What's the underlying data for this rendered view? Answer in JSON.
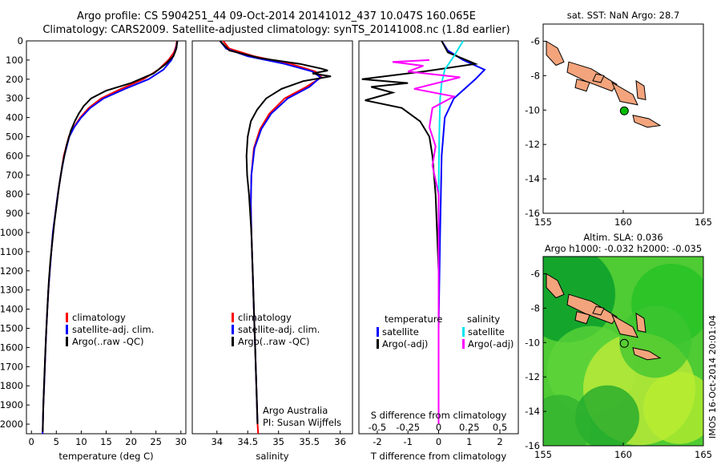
{
  "header": {
    "line1": "Argo profile: CS 5904251_44 09-Oct-2014 20141012_437 10.047S 160.065E",
    "line2": "Climatology: CARS2009. Satellite-adjusted climatology: synTS_20141008.nc (1.8d earlier)"
  },
  "side_stamp": "IMOS 16-Oct-2014 20:01:04",
  "credits": {
    "line1": "Argo Australia",
    "line2": "PI: Susan Wijffels"
  },
  "colors": {
    "climatology": "#ff0000",
    "satellite": "#0000ff",
    "argo": "#000000",
    "sat_diff_t": "#00e5ee",
    "argo_diff_s": "#ff00ff",
    "land": "#f4a47c",
    "marker": "#00bb00"
  },
  "chart_data": [
    {
      "type": "line",
      "xlabel": "temperature (deg C)",
      "ylim": [
        2050,
        0
      ],
      "xlim": [
        -1,
        31
      ],
      "x_ticks": [
        0,
        5,
        10,
        15,
        20,
        25,
        30
      ],
      "y_ticks": [
        0,
        100,
        200,
        300,
        400,
        500,
        600,
        700,
        800,
        900,
        1000,
        1100,
        1200,
        1300,
        1400,
        1500,
        1600,
        1700,
        1800,
        1900,
        2000
      ],
      "legend": [
        "climatology",
        "satellite-adj. clim.",
        "Argo(..raw -QC)"
      ],
      "series": [
        {
          "name": "climatology",
          "color": "#ff0000",
          "points": [
            [
              29.2,
              0
            ],
            [
              29,
              30
            ],
            [
              28.6,
              60
            ],
            [
              27.5,
              100
            ],
            [
              25.5,
              150
            ],
            [
              22.5,
              200
            ],
            [
              18,
              250
            ],
            [
              14,
              300
            ],
            [
              11.5,
              350
            ],
            [
              9.8,
              400
            ],
            [
              8.5,
              450
            ],
            [
              7.5,
              500
            ],
            [
              6.5,
              600
            ],
            [
              5.9,
              700
            ],
            [
              5.3,
              800
            ],
            [
              4.8,
              900
            ],
            [
              4.3,
              1000
            ],
            [
              4,
              1100
            ],
            [
              3.7,
              1200
            ],
            [
              3.4,
              1300
            ],
            [
              3.2,
              1400
            ],
            [
              3,
              1500
            ],
            [
              2.85,
              1600
            ],
            [
              2.7,
              1700
            ],
            [
              2.55,
              1800
            ],
            [
              2.4,
              1900
            ],
            [
              2.3,
              2000
            ],
            [
              2.25,
              2050
            ]
          ]
        },
        {
          "name": "satellite-adj. clim.",
          "color": "#0000ff",
          "points": [
            [
              29.3,
              0
            ],
            [
              29.1,
              30
            ],
            [
              28.8,
              60
            ],
            [
              28.1,
              100
            ],
            [
              26.5,
              150
            ],
            [
              23.5,
              200
            ],
            [
              18.8,
              250
            ],
            [
              14.5,
              300
            ],
            [
              11.8,
              350
            ],
            [
              10,
              400
            ],
            [
              8.6,
              450
            ],
            [
              7.6,
              500
            ],
            [
              6.6,
              600
            ],
            [
              5.9,
              700
            ],
            [
              5.3,
              800
            ],
            [
              4.8,
              900
            ],
            [
              4.3,
              1000
            ],
            [
              4,
              1100
            ],
            [
              3.7,
              1200
            ],
            [
              3.4,
              1300
            ],
            [
              3.2,
              1400
            ],
            [
              3,
              1500
            ],
            [
              2.85,
              1600
            ],
            [
              2.7,
              1700
            ],
            [
              2.55,
              1800
            ],
            [
              2.4,
              1900
            ],
            [
              2.3,
              2000
            ],
            [
              2.25,
              2050
            ]
          ]
        },
        {
          "name": "Argo(..raw -QC)",
          "color": "#000000",
          "points": [
            [
              29.3,
              0
            ],
            [
              29.1,
              40
            ],
            [
              28.5,
              80
            ],
            [
              27,
              120
            ],
            [
              24.5,
              170
            ],
            [
              20,
              220
            ],
            [
              15,
              260
            ],
            [
              12,
              300
            ],
            [
              10.5,
              340
            ],
            [
              9.5,
              380
            ],
            [
              8.7,
              420
            ],
            [
              7.9,
              470
            ],
            [
              7,
              550
            ],
            [
              6.2,
              650
            ],
            [
              5.6,
              750
            ],
            [
              5.1,
              850
            ],
            [
              4.6,
              950
            ],
            [
              4.2,
              1050
            ],
            [
              3.8,
              1150
            ],
            [
              3.5,
              1250
            ],
            [
              3.3,
              1350
            ],
            [
              3.1,
              1450
            ],
            [
              2.9,
              1550
            ],
            [
              2.75,
              1650
            ],
            [
              2.6,
              1750
            ],
            [
              2.45,
              1850
            ],
            [
              2.35,
              1950
            ],
            [
              2.28,
              2040
            ]
          ]
        }
      ]
    },
    {
      "type": "line",
      "xlabel": "salinity",
      "ylim": [
        2050,
        0
      ],
      "xlim": [
        33.6,
        36.2
      ],
      "x_ticks": [
        34,
        34.5,
        35,
        35.5,
        36
      ],
      "legend": [
        "climatology",
        "satellite-adj. clim.",
        "Argo(..raw -QC)"
      ],
      "series": [
        {
          "name": "climatology",
          "color": "#ff0000",
          "points": [
            [
              34.1,
              0
            ],
            [
              34.2,
              40
            ],
            [
              34.6,
              80
            ],
            [
              35.2,
              120
            ],
            [
              35.6,
              160
            ],
            [
              35.7,
              190
            ],
            [
              35.45,
              240
            ],
            [
              35.1,
              300
            ],
            [
              34.85,
              380
            ],
            [
              34.7,
              460
            ],
            [
              34.6,
              560
            ],
            [
              34.56,
              700
            ],
            [
              34.55,
              850
            ],
            [
              34.56,
              1000
            ],
            [
              34.58,
              1200
            ],
            [
              34.6,
              1400
            ],
            [
              34.62,
              1600
            ],
            [
              34.64,
              1800
            ],
            [
              34.66,
              2000
            ],
            [
              34.67,
              2050
            ]
          ]
        },
        {
          "name": "satellite-adj. clim.",
          "color": "#0000ff",
          "points": [
            [
              34.05,
              0
            ],
            [
              34.15,
              40
            ],
            [
              34.5,
              80
            ],
            [
              35.1,
              120
            ],
            [
              35.55,
              160
            ],
            [
              35.68,
              190
            ],
            [
              35.5,
              240
            ],
            [
              35.15,
              300
            ],
            [
              34.88,
              380
            ],
            [
              34.72,
              460
            ],
            [
              34.61,
              560
            ],
            [
              34.56,
              700
            ],
            [
              34.55,
              850
            ],
            [
              34.56,
              1000
            ],
            [
              34.58,
              1200
            ],
            [
              34.6,
              1400
            ],
            [
              34.62,
              1600
            ],
            [
              34.64,
              1800
            ],
            [
              34.66,
              2000
            ]
          ]
        },
        {
          "name": "Argo(..raw -QC)",
          "color": "#000000",
          "points": [
            [
              34.05,
              0
            ],
            [
              34.2,
              50
            ],
            [
              34.7,
              90
            ],
            [
              35.35,
              120
            ],
            [
              35.7,
              145
            ],
            [
              35.8,
              155
            ],
            [
              35.55,
              170
            ],
            [
              35.85,
              185
            ],
            [
              35.4,
              210
            ],
            [
              35.05,
              250
            ],
            [
              34.8,
              300
            ],
            [
              34.65,
              360
            ],
            [
              34.55,
              420
            ],
            [
              34.5,
              500
            ],
            [
              34.48,
              600
            ],
            [
              34.49,
              700
            ],
            [
              34.52,
              800
            ],
            [
              34.54,
              900
            ],
            [
              34.56,
              1000
            ],
            [
              34.58,
              1200
            ],
            [
              34.6,
              1400
            ],
            [
              34.62,
              1600
            ],
            [
              34.64,
              1800
            ],
            [
              34.66,
              2000
            ]
          ]
        }
      ]
    },
    {
      "type": "line",
      "xlabel": "T difference from climatology",
      "xlabel_top": "S difference from climatology",
      "ylim": [
        2050,
        0
      ],
      "xlim": [
        -2.6,
        2.6
      ],
      "x_ticks": [
        -2,
        -1,
        0,
        1,
        2
      ],
      "x_ticks_top": [
        "-0.5",
        "-0.25",
        "0",
        "0.25",
        "0.5"
      ],
      "legend_headers": [
        "temperature",
        "salinity"
      ],
      "legend": [
        "satellite",
        "Argo(-adj)",
        "satellite",
        "Argo(-adj)"
      ],
      "series": [
        {
          "name": "satellite",
          "color": "#0000ff",
          "points": [
            [
              0.1,
              0
            ],
            [
              0.3,
              50
            ],
            [
              0.8,
              100
            ],
            [
              1.5,
              150
            ],
            [
              1.2,
              200
            ],
            [
              0.5,
              300
            ],
            [
              0.2,
              400
            ],
            [
              0.1,
              600
            ],
            [
              0.05,
              1000
            ],
            [
              0,
              1500
            ],
            [
              0,
              2000
            ]
          ]
        },
        {
          "name": "Argo(-adj)",
          "color": "#000000",
          "points": [
            [
              0.1,
              0
            ],
            [
              0.3,
              60
            ],
            [
              1.2,
              120
            ],
            [
              -0.5,
              160
            ],
            [
              -2.5,
              200
            ],
            [
              -1,
              220
            ],
            [
              -2.2,
              240
            ],
            [
              -1.5,
              270
            ],
            [
              -2.4,
              310
            ],
            [
              -1.2,
              350
            ],
            [
              -0.6,
              420
            ],
            [
              -0.3,
              500
            ],
            [
              -0.2,
              600
            ],
            [
              -0.1,
              800
            ],
            [
              0,
              1200
            ],
            [
              0,
              1600
            ],
            [
              0,
              2000
            ]
          ]
        },
        {
          "name": "satellite",
          "color": "#00e5ee",
          "points": [
            [
              0.8,
              0
            ],
            [
              0.5,
              80
            ],
            [
              0.2,
              150
            ],
            [
              0.1,
              220
            ],
            [
              0.05,
              300
            ],
            [
              0.02,
              500
            ],
            [
              0,
              800
            ],
            [
              0,
              1200
            ],
            [
              0,
              1600
            ],
            [
              0,
              2000
            ]
          ]
        },
        {
          "name": "Argo(-adj)",
          "color": "#ff00ff",
          "points": [
            [
              -0.3,
              100
            ],
            [
              -1.5,
              110
            ],
            [
              -0.5,
              130
            ],
            [
              -1,
              160
            ],
            [
              0.7,
              190
            ],
            [
              -0.8,
              250
            ],
            [
              0.5,
              290
            ],
            [
              -0.2,
              350
            ],
            [
              -0.3,
              450
            ],
            [
              -0.1,
              550
            ],
            [
              -0.2,
              650
            ],
            [
              0,
              800
            ],
            [
              0,
              1000
            ],
            [
              0,
              1200
            ],
            [
              0,
              1500
            ],
            [
              0,
              2000
            ]
          ]
        }
      ]
    },
    {
      "type": "map",
      "title": "sat. SST: NaN Argo: 28.7",
      "xlim": [
        155,
        165
      ],
      "ylim": [
        -16,
        -5
      ],
      "x_ticks": [
        155,
        160,
        165
      ],
      "y_ticks": [
        -6,
        -8,
        -10,
        -12,
        -14,
        -16
      ],
      "argo_position": [
        160.065,
        -10.047
      ]
    },
    {
      "type": "map",
      "title": "Altim. SLA: 0.036",
      "subtitle": "Argo h1000: -0.032 h2000: -0.035",
      "xlim": [
        155,
        165
      ],
      "ylim": [
        -16,
        -5
      ],
      "x_ticks": [
        155,
        160,
        165
      ],
      "y_ticks": [
        -6,
        -8,
        -10,
        -12,
        -14,
        -16
      ],
      "argo_position": [
        160.065,
        -10.047
      ]
    }
  ]
}
